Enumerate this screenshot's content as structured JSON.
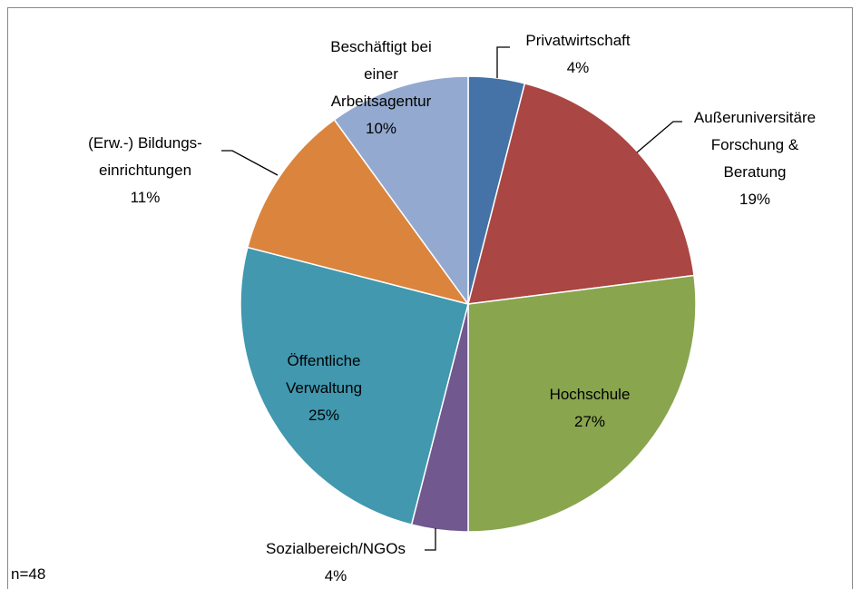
{
  "chart_data": {
    "type": "pie",
    "categories": [
      "Privatwirtschaft",
      "Außeruniversitäre Forschung & Beratung",
      "Hochschule",
      "Sozialbereich/NGOs",
      "Öffentliche Verwaltung",
      "(Erw.-) Bildungs-einrichtungen",
      "Beschäftigt bei einer Arbeitsagentur"
    ],
    "values": [
      4,
      19,
      27,
      4,
      25,
      11,
      10
    ],
    "value_labels": [
      "4%",
      "19%",
      "27%",
      "4%",
      "25%",
      "11%",
      "10%"
    ],
    "colors": [
      "#4572a7",
      "#aa4643",
      "#89a54e",
      "#71588f",
      "#4198af",
      "#db843d",
      "#93a9cf"
    ],
    "note": "n=48"
  }
}
